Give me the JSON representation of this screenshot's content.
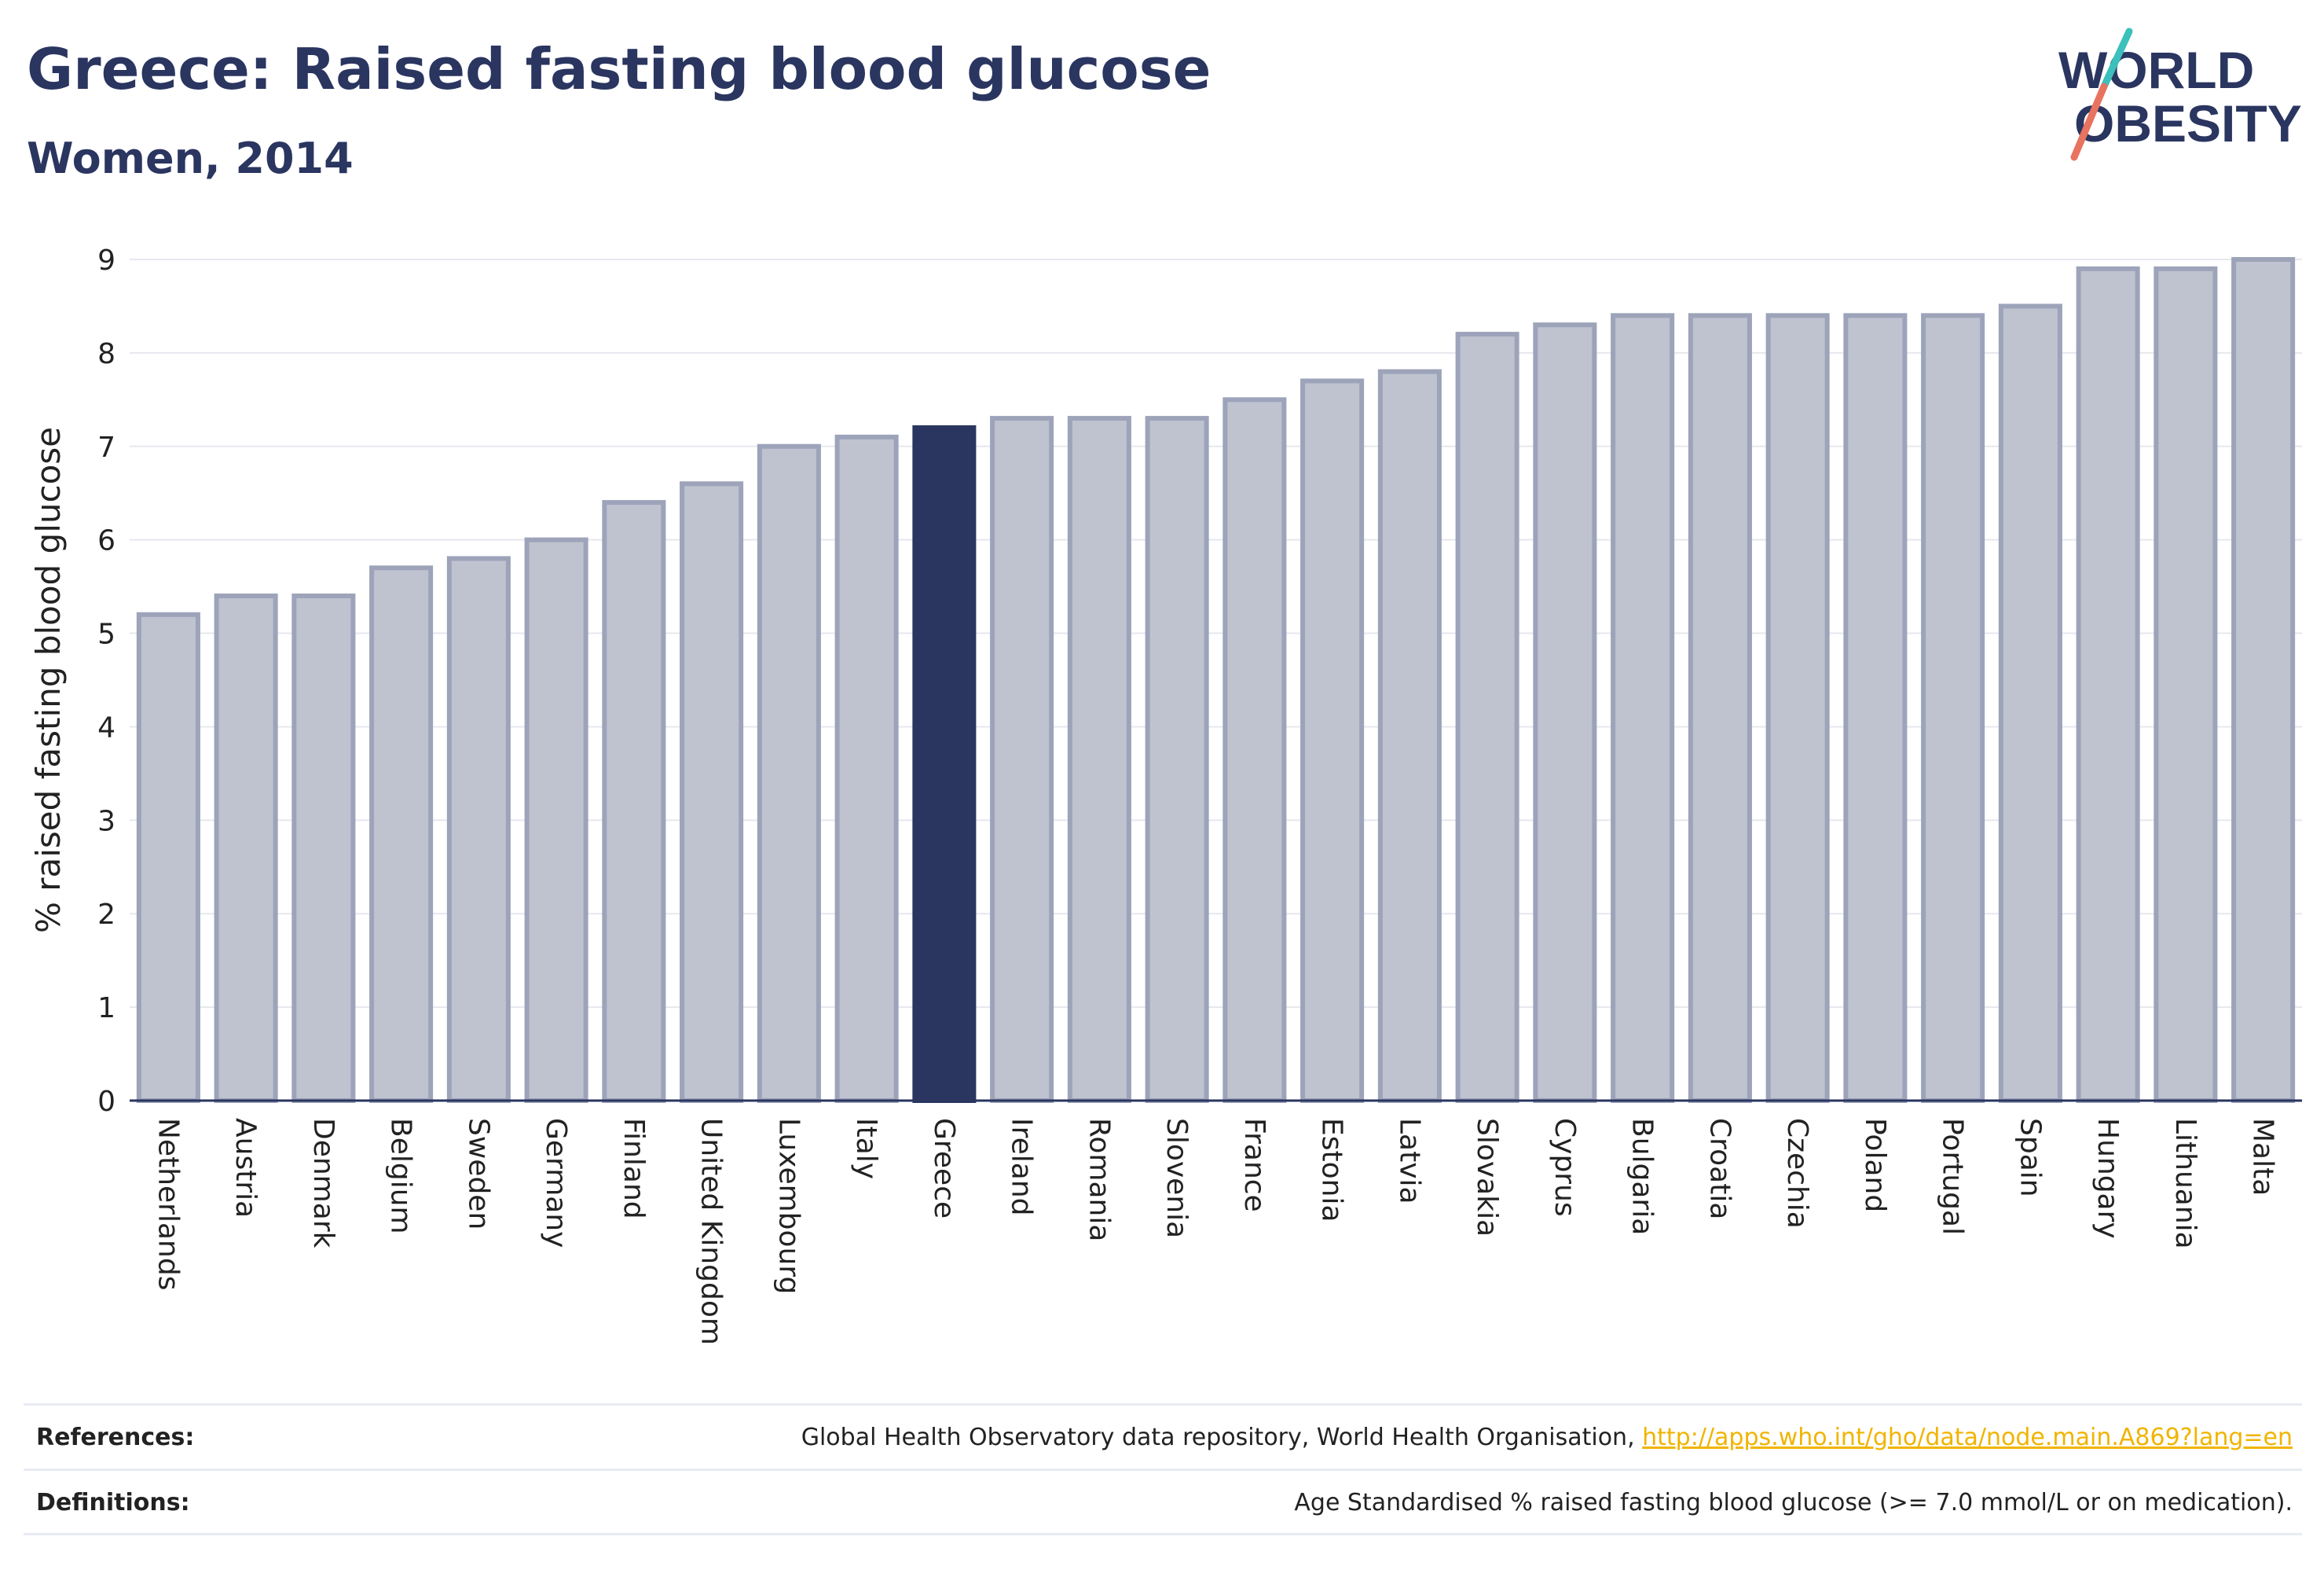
{
  "header": {
    "title": "Greece: Raised fasting blood glucose",
    "subtitle": "Women, 2014"
  },
  "logo": {
    "line1": "WORLD",
    "line2": "OBESITY",
    "name": "world-obesity-logo"
  },
  "colors": {
    "highlight": "#2a3560",
    "bar": "#bfc3d0",
    "bar_border": "#9da3b9",
    "accent_teal": "#3cc0bc",
    "accent_coral": "#e8735f",
    "link": "#f0b400"
  },
  "chart_data": {
    "type": "bar",
    "categories": [
      "Netherlands",
      "Austria",
      "Denmark",
      "Belgium",
      "Sweden",
      "Germany",
      "Finland",
      "United Kingdom",
      "Luxembourg",
      "Italy",
      "Greece",
      "Ireland",
      "Romania",
      "Slovenia",
      "France",
      "Estonia",
      "Latvia",
      "Slovakia",
      "Cyprus",
      "Bulgaria",
      "Croatia",
      "Czechia",
      "Poland",
      "Portugal",
      "Spain",
      "Hungary",
      "Lithuania",
      "Malta"
    ],
    "values": [
      5.2,
      5.4,
      5.4,
      5.7,
      5.8,
      6.0,
      6.4,
      6.6,
      7.0,
      7.1,
      7.2,
      7.3,
      7.3,
      7.3,
      7.5,
      7.7,
      7.8,
      8.2,
      8.3,
      8.4,
      8.4,
      8.4,
      8.4,
      8.4,
      8.5,
      8.9,
      8.9,
      9.0
    ],
    "highlight": "Greece",
    "ylabel": "% raised fasting blood glucose",
    "ylim": [
      0,
      9
    ],
    "yticks": [
      0,
      1,
      2,
      3,
      4,
      5,
      6,
      7,
      8,
      9
    ],
    "grid": true
  },
  "footer": {
    "references_label": "References:",
    "references_text": "Global Health Observatory data repository, World Health Organisation, ",
    "references_link": "http://apps.who.int/gho/data/node.main.A869?lang=en",
    "definitions_label": "Definitions:",
    "definitions_text": "Age Standardised % raised fasting blood glucose (>= 7.0 mmol/L or on medication)."
  }
}
